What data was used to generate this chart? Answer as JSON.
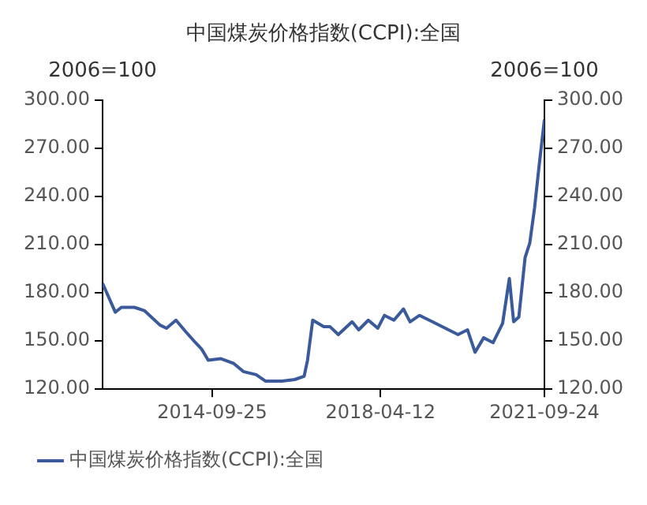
{
  "chart_data": {
    "type": "line",
    "title": "中国煤炭价格指数(CCPI):全国",
    "ylabel": "2006=100",
    "y2label": "2006=100",
    "x": [
      "2012-06-03",
      "2012-09-09",
      "2012-10-26",
      "2013-02-03",
      "2013-04-20",
      "2013-08-18",
      "2013-10-08",
      "2013-12-20",
      "2014-03-03",
      "2014-05-19",
      "2014-07-05",
      "2014-08-25",
      "2014-12-01",
      "2015-03-10",
      "2015-05-22",
      "2015-08-29",
      "2015-11-10",
      "2016-03-14",
      "2016-06-20",
      "2016-09-01",
      "2016-09-27",
      "2016-11-06",
      "2017-01-30",
      "2017-03-18",
      "2017-05-22",
      "2017-09-05",
      "2017-10-26",
      "2018-01-08",
      "2018-03-22",
      "2018-05-12",
      "2018-07-24",
      "2018-10-05",
      "2018-11-25",
      "2019-02-06",
      "2019-05-16",
      "2019-09-17",
      "2019-11-29",
      "2020-02-10",
      "2020-04-08",
      "2020-06-13",
      "2020-08-25",
      "2020-11-06",
      "2020-12-28",
      "2021-01-30",
      "2021-03-11",
      "2021-04-28",
      "2021-06-03",
      "2021-07-10",
      "2021-08-15",
      "2021-09-24"
    ],
    "series": [
      {
        "name": "中国煤炭价格指数(CCPI):全国",
        "color": "#3a5a9c",
        "values": [
          186,
          168,
          171,
          171,
          169,
          160,
          158,
          163,
          156,
          149,
          145,
          138,
          139,
          136,
          131,
          129,
          125,
          125,
          126,
          128,
          138,
          163,
          159,
          159,
          154,
          162,
          157,
          163,
          158,
          166,
          163,
          170,
          162,
          166,
          162,
          157,
          154,
          157,
          143,
          152,
          149,
          161,
          189,
          162,
          165,
          202,
          211,
          233,
          260,
          288
        ]
      }
    ],
    "xlim": [
      "2012-06-03",
      "2021-09-24"
    ],
    "xticks": [
      "2014-09-25",
      "2018-04-12",
      "2021-09-24"
    ],
    "ylim": [
      120,
      300
    ],
    "yticks": [
      {
        "value": 120,
        "label": "120.00"
      },
      {
        "value": 150,
        "label": "150.00"
      },
      {
        "value": 180,
        "label": "180.00"
      },
      {
        "value": 210,
        "label": "210.00"
      },
      {
        "value": 240,
        "label": "240.00"
      },
      {
        "value": 270,
        "label": "270.00"
      },
      {
        "value": 300,
        "label": "300.00"
      }
    ],
    "y2lim": [
      120,
      300
    ],
    "y2ticks": [
      {
        "value": 120,
        "label": "120.00"
      },
      {
        "value": 150,
        "label": "150.00"
      },
      {
        "value": 180,
        "label": "180.00"
      },
      {
        "value": 210,
        "label": "210.00"
      },
      {
        "value": 240,
        "label": "240.00"
      },
      {
        "value": 270,
        "label": "270.00"
      },
      {
        "value": 300,
        "label": "300.00"
      }
    ],
    "grid": false,
    "legend": "bottom",
    "marker": "none",
    "line_style": "solid"
  }
}
